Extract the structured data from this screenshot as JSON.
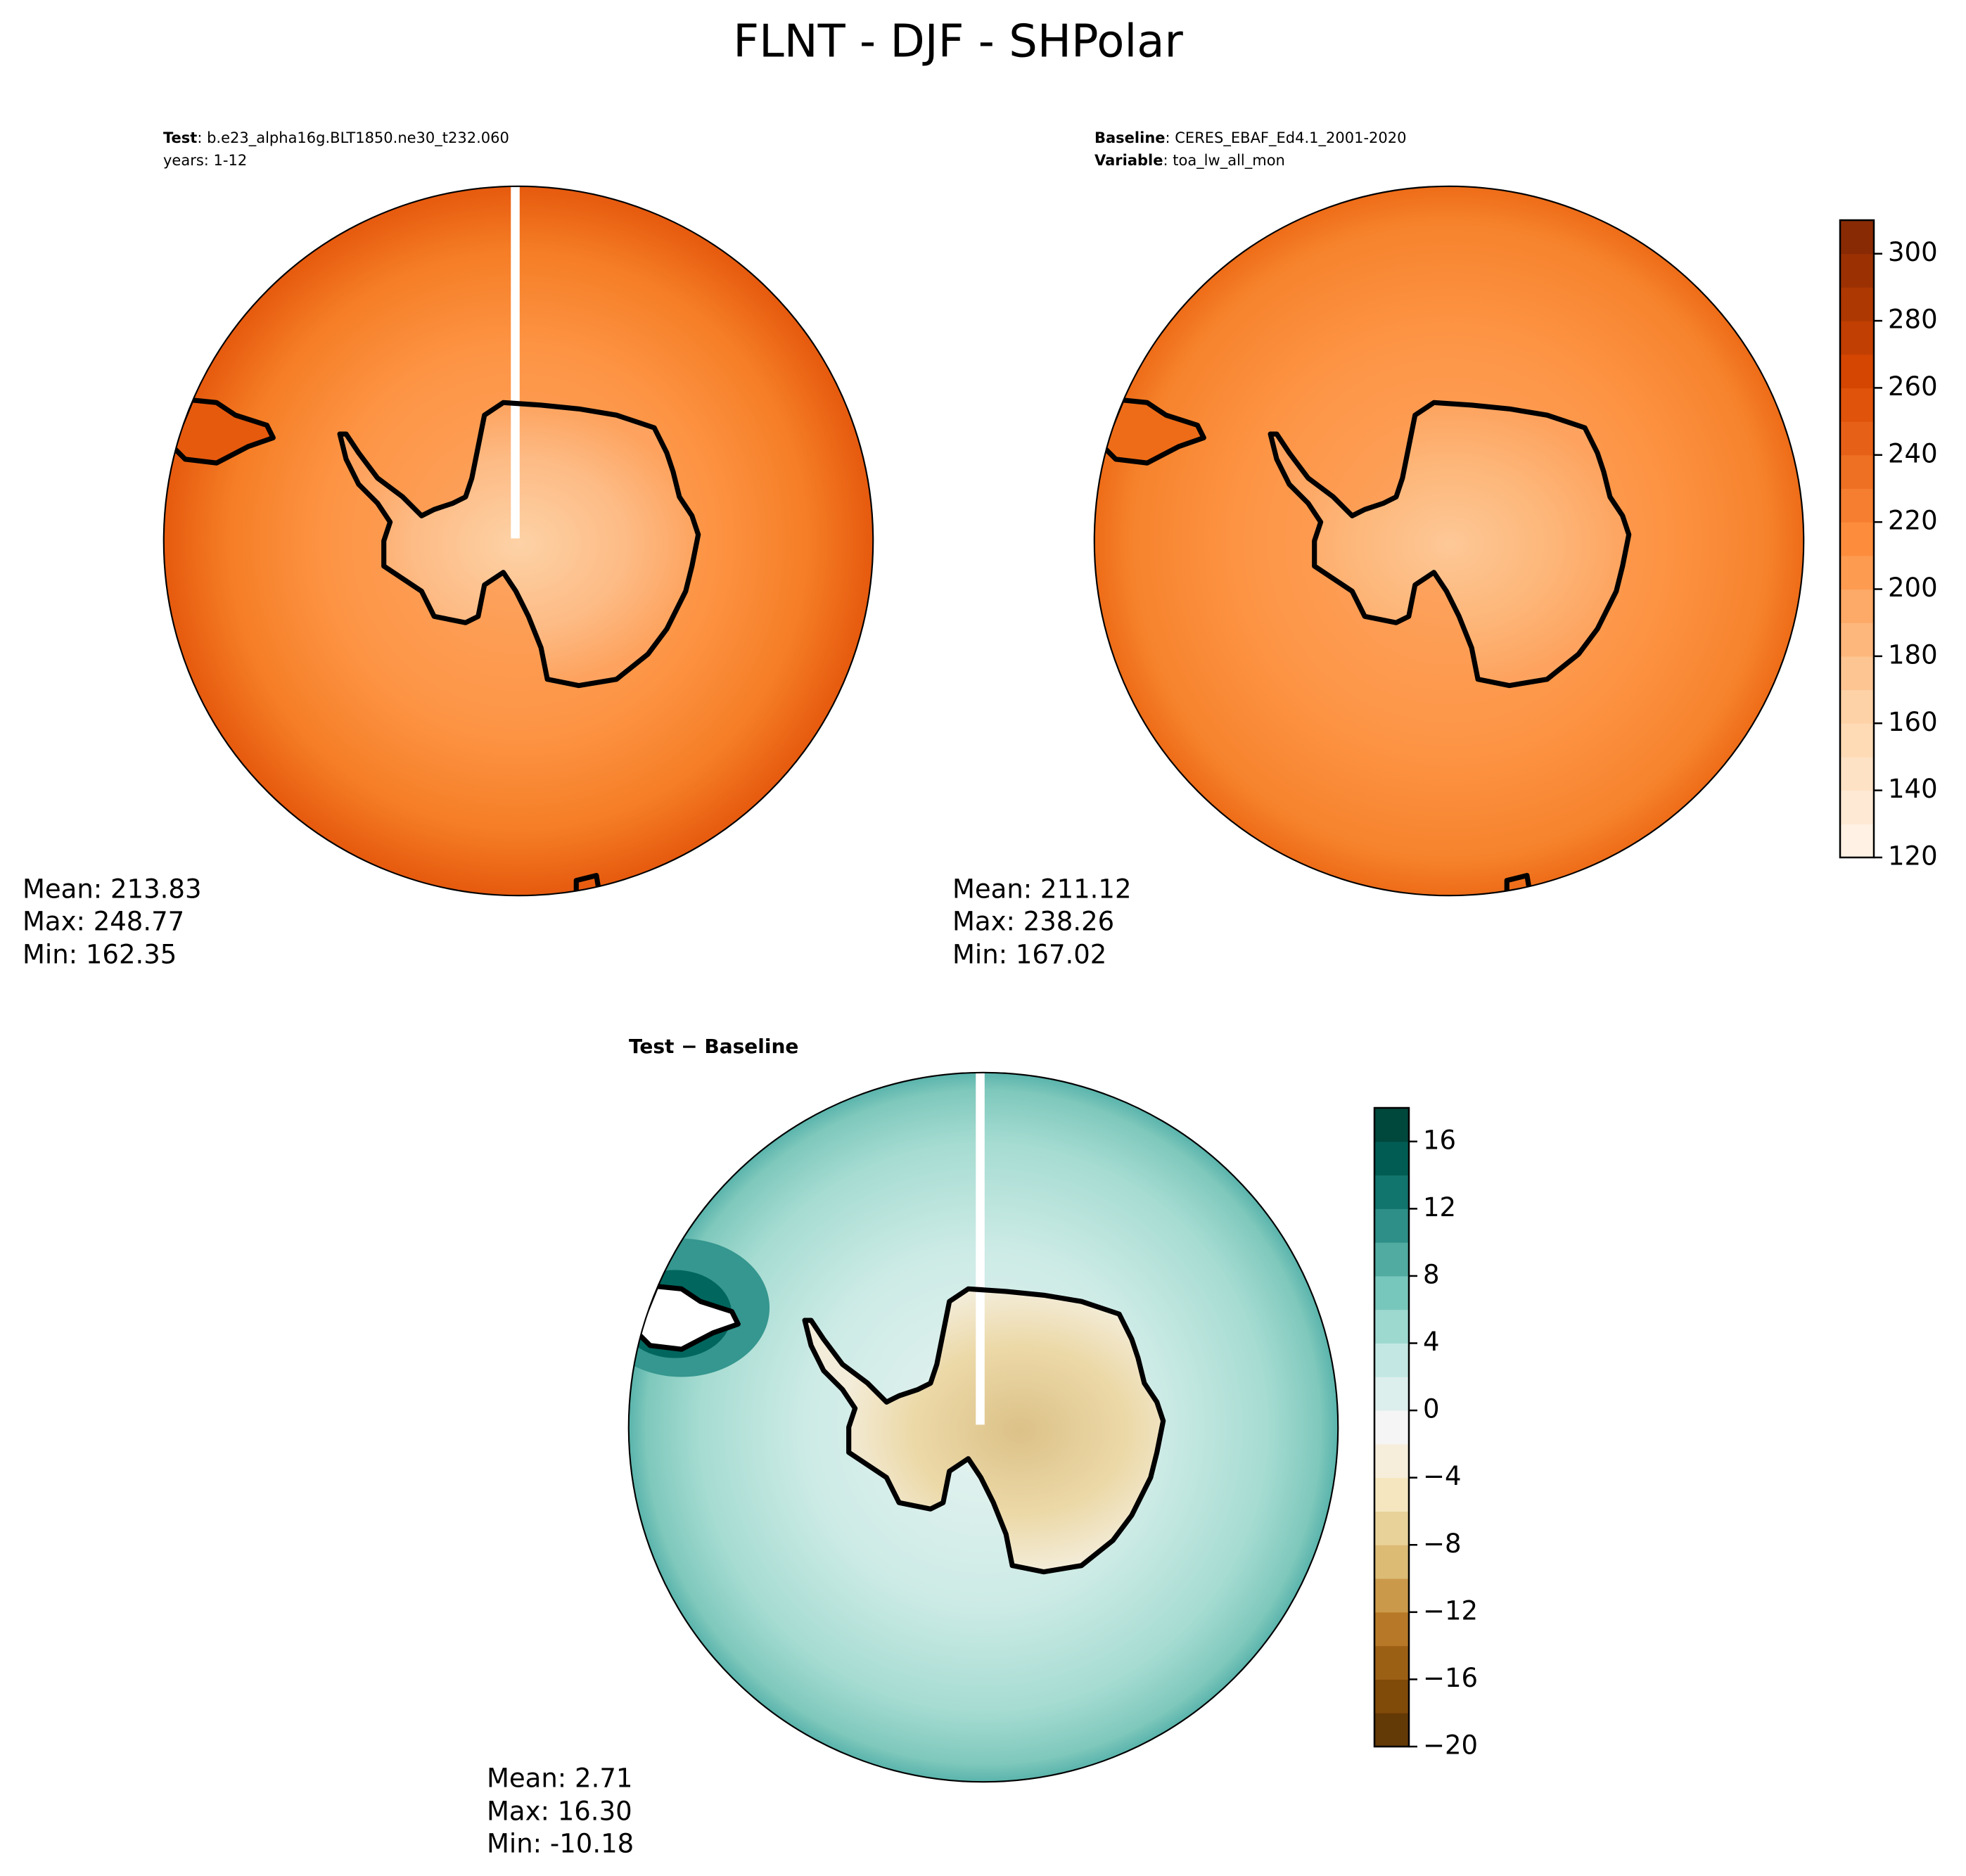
{
  "title": "FLNT - DJF - SHPolar",
  "panels": [
    {
      "header": [
        {
          "label": "Test",
          "text": ": b.e23_alpha16g.BLT1850.ne30_t232.060"
        },
        {
          "label": null,
          "text": "years: 1-12"
        }
      ],
      "stats": [
        "Mean: 213.83",
        "Max: 248.77",
        "Min: 162.35"
      ]
    },
    {
      "header": [
        {
          "label": "Baseline",
          "text": ": CERES_EBAF_Ed4.1_2001-2020"
        },
        {
          "label": "Variable",
          "text": ": toa_lw_all_mon"
        }
      ],
      "stats": [
        "Mean: 211.12",
        "Max: 238.26",
        "Min: 167.02"
      ]
    },
    {
      "header": [
        {
          "label": "Test − Baseline",
          "text": null
        }
      ],
      "stats": [
        "Mean:  2.71",
        "Max: 16.30",
        "Min: -10.18"
      ]
    }
  ],
  "colorbars": [
    {
      "lim": [
        120,
        310
      ],
      "step": 10,
      "ticks": [
        120,
        140,
        160,
        180,
        200,
        220,
        240,
        260,
        280,
        300
      ],
      "colors": [
        "#fff5eb",
        "#fdd0a2",
        "#fd8d3c",
        "#d94801",
        "#7f2704"
      ]
    },
    {
      "lim": [
        -20,
        18
      ],
      "step": 2,
      "ticks": [
        {
          "value": -20,
          "label": "−20"
        },
        {
          "value": -16,
          "label": "−16"
        },
        {
          "value": -12,
          "label": "−12"
        },
        {
          "value": -8,
          "label": "−8"
        },
        {
          "value": -4,
          "label": "−4"
        },
        0,
        4,
        8,
        12,
        16
      ],
      "colors": [
        "#543005",
        "#8c510a",
        "#bf812d",
        "#dfc27d",
        "#f6e8c3",
        "#f5f5f5",
        "#c7eae5",
        "#80cdc1",
        "#35978f",
        "#01665e",
        "#003c30"
      ]
    }
  ]
}
